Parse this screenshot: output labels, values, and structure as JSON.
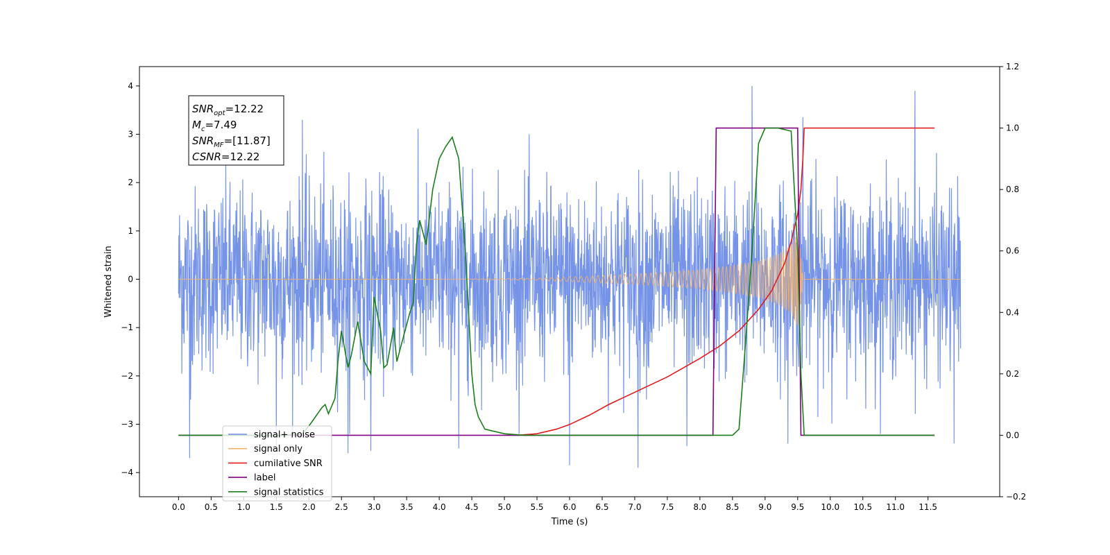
{
  "chart_data": {
    "type": "line",
    "title": "",
    "xlabel": "Time (s)",
    "ylabel": "Whitened strain",
    "xlim": [
      -0.6,
      12.6
    ],
    "ylim": [
      -4.5,
      4.4
    ],
    "y2lim": [
      -0.2,
      1.2
    ],
    "x_ticks": [
      "0.0",
      "0.5",
      "1.0",
      "1.5",
      "2.0",
      "2.5",
      "3.0",
      "3.5",
      "4.0",
      "4.5",
      "5.0",
      "5.5",
      "6.0",
      "6.5",
      "7.0",
      "7.5",
      "8.0",
      "8.5",
      "9.0",
      "9.5",
      "10.0",
      "10.5",
      "11.0",
      "11.5"
    ],
    "y_ticks": [
      "−4",
      "−3",
      "−2",
      "−1",
      "0",
      "1",
      "2",
      "3",
      "4"
    ],
    "y2_ticks": [
      "−0.2",
      "0.0",
      "0.2",
      "0.4",
      "0.6",
      "0.8",
      "1.0",
      "1.2"
    ],
    "annotation": [
      {
        "main": "SNR",
        "sub": "opt",
        "rest": "=12.22"
      },
      {
        "main": "M",
        "sub": "c",
        "rest": "=7.49"
      },
      {
        "main": "SNR",
        "sub": "MF",
        "rest": "=[11.87]"
      },
      {
        "main": "CSNR",
        "sub": "",
        "rest": "=12.22"
      }
    ],
    "legend_position": "lower-left",
    "series": [
      {
        "name": "signal+ noise",
        "color": "#6f8ee6",
        "axis": "left",
        "kind": "noise",
        "x_range": [
          0.0,
          12.0
        ],
        "approx_std": 1.0,
        "spikes": [
          [
            0.17,
            -3.7
          ],
          [
            1.5,
            -3.45
          ],
          [
            2.6,
            -3.6
          ],
          [
            2.95,
            -3.55
          ],
          [
            4.3,
            -3.5
          ],
          [
            6.0,
            -3.85
          ],
          [
            7.05,
            -3.9
          ],
          [
            7.8,
            -3.45
          ],
          [
            8.8,
            4.0
          ],
          [
            9.35,
            -3.4
          ],
          [
            11.3,
            3.9
          ],
          [
            11.9,
            -3.4
          ],
          [
            1.9,
            3.3
          ],
          [
            9.58,
            3.35
          ]
        ]
      },
      {
        "name": "signal only",
        "color": "#f2b06a",
        "axis": "left",
        "kind": "chirp",
        "x_range": [
          0.0,
          12.0
        ],
        "envelope": [
          [
            5.5,
            0.02
          ],
          [
            6.0,
            0.05
          ],
          [
            6.5,
            0.08
          ],
          [
            7.0,
            0.11
          ],
          [
            7.5,
            0.15
          ],
          [
            8.0,
            0.2
          ],
          [
            8.5,
            0.28
          ],
          [
            8.9,
            0.38
          ],
          [
            9.2,
            0.52
          ],
          [
            9.4,
            0.7
          ],
          [
            9.5,
            1.0
          ],
          [
            9.55,
            0.5
          ],
          [
            9.58,
            0.0
          ]
        ]
      },
      {
        "name": "cumilative SNR",
        "color": "#e41a1c",
        "axis": "right",
        "points": [
          [
            5.2,
            0.0
          ],
          [
            5.5,
            0.005
          ],
          [
            5.8,
            0.02
          ],
          [
            6.0,
            0.035
          ],
          [
            6.3,
            0.065
          ],
          [
            6.6,
            0.1
          ],
          [
            7.0,
            0.14
          ],
          [
            7.5,
            0.19
          ],
          [
            8.0,
            0.25
          ],
          [
            8.3,
            0.29
          ],
          [
            8.6,
            0.34
          ],
          [
            8.9,
            0.41
          ],
          [
            9.1,
            0.47
          ],
          [
            9.3,
            0.56
          ],
          [
            9.4,
            0.63
          ],
          [
            9.5,
            0.72
          ],
          [
            9.55,
            0.8
          ],
          [
            9.58,
            0.9
          ],
          [
            9.6,
            1.0
          ],
          [
            11.6,
            1.0
          ]
        ]
      },
      {
        "name": "label",
        "color": "#800080",
        "axis": "right",
        "points": [
          [
            0.0,
            0.0
          ],
          [
            8.2,
            0.0
          ],
          [
            8.25,
            1.0
          ],
          [
            9.5,
            1.0
          ],
          [
            9.55,
            0.0
          ],
          [
            11.6,
            0.0
          ]
        ]
      },
      {
        "name": "signal statistics",
        "color": "#1a7f1a",
        "axis": "right",
        "points": [
          [
            0.0,
            0.0
          ],
          [
            1.6,
            0.0
          ],
          [
            1.9,
            0.005
          ],
          [
            2.0,
            0.03
          ],
          [
            2.1,
            0.06
          ],
          [
            2.2,
            0.09
          ],
          [
            2.25,
            0.1
          ],
          [
            2.3,
            0.07
          ],
          [
            2.4,
            0.12
          ],
          [
            2.45,
            0.25
          ],
          [
            2.5,
            0.34
          ],
          [
            2.6,
            0.22
          ],
          [
            2.65,
            0.26
          ],
          [
            2.75,
            0.37
          ],
          [
            2.85,
            0.24
          ],
          [
            2.95,
            0.2
          ],
          [
            3.0,
            0.45
          ],
          [
            3.1,
            0.34
          ],
          [
            3.15,
            0.22
          ],
          [
            3.2,
            0.23
          ],
          [
            3.3,
            0.35
          ],
          [
            3.35,
            0.24
          ],
          [
            3.45,
            0.32
          ],
          [
            3.55,
            0.4
          ],
          [
            3.6,
            0.43
          ],
          [
            3.65,
            0.62
          ],
          [
            3.7,
            0.7
          ],
          [
            3.8,
            0.62
          ],
          [
            3.9,
            0.8
          ],
          [
            4.0,
            0.9
          ],
          [
            4.1,
            0.94
          ],
          [
            4.2,
            0.97
          ],
          [
            4.3,
            0.9
          ],
          [
            4.4,
            0.6
          ],
          [
            4.45,
            0.4
          ],
          [
            4.5,
            0.2
          ],
          [
            4.55,
            0.1
          ],
          [
            4.6,
            0.06
          ],
          [
            4.7,
            0.02
          ],
          [
            4.8,
            0.015
          ],
          [
            5.0,
            0.005
          ],
          [
            5.3,
            0.0
          ],
          [
            8.5,
            0.0
          ],
          [
            8.6,
            0.02
          ],
          [
            8.7,
            0.3
          ],
          [
            8.8,
            0.6
          ],
          [
            8.9,
            0.95
          ],
          [
            9.0,
            1.0
          ],
          [
            9.2,
            1.0
          ],
          [
            9.4,
            0.99
          ],
          [
            9.5,
            0.6
          ],
          [
            9.55,
            0.2
          ],
          [
            9.6,
            0.0
          ],
          [
            11.6,
            0.0
          ]
        ]
      }
    ]
  }
}
